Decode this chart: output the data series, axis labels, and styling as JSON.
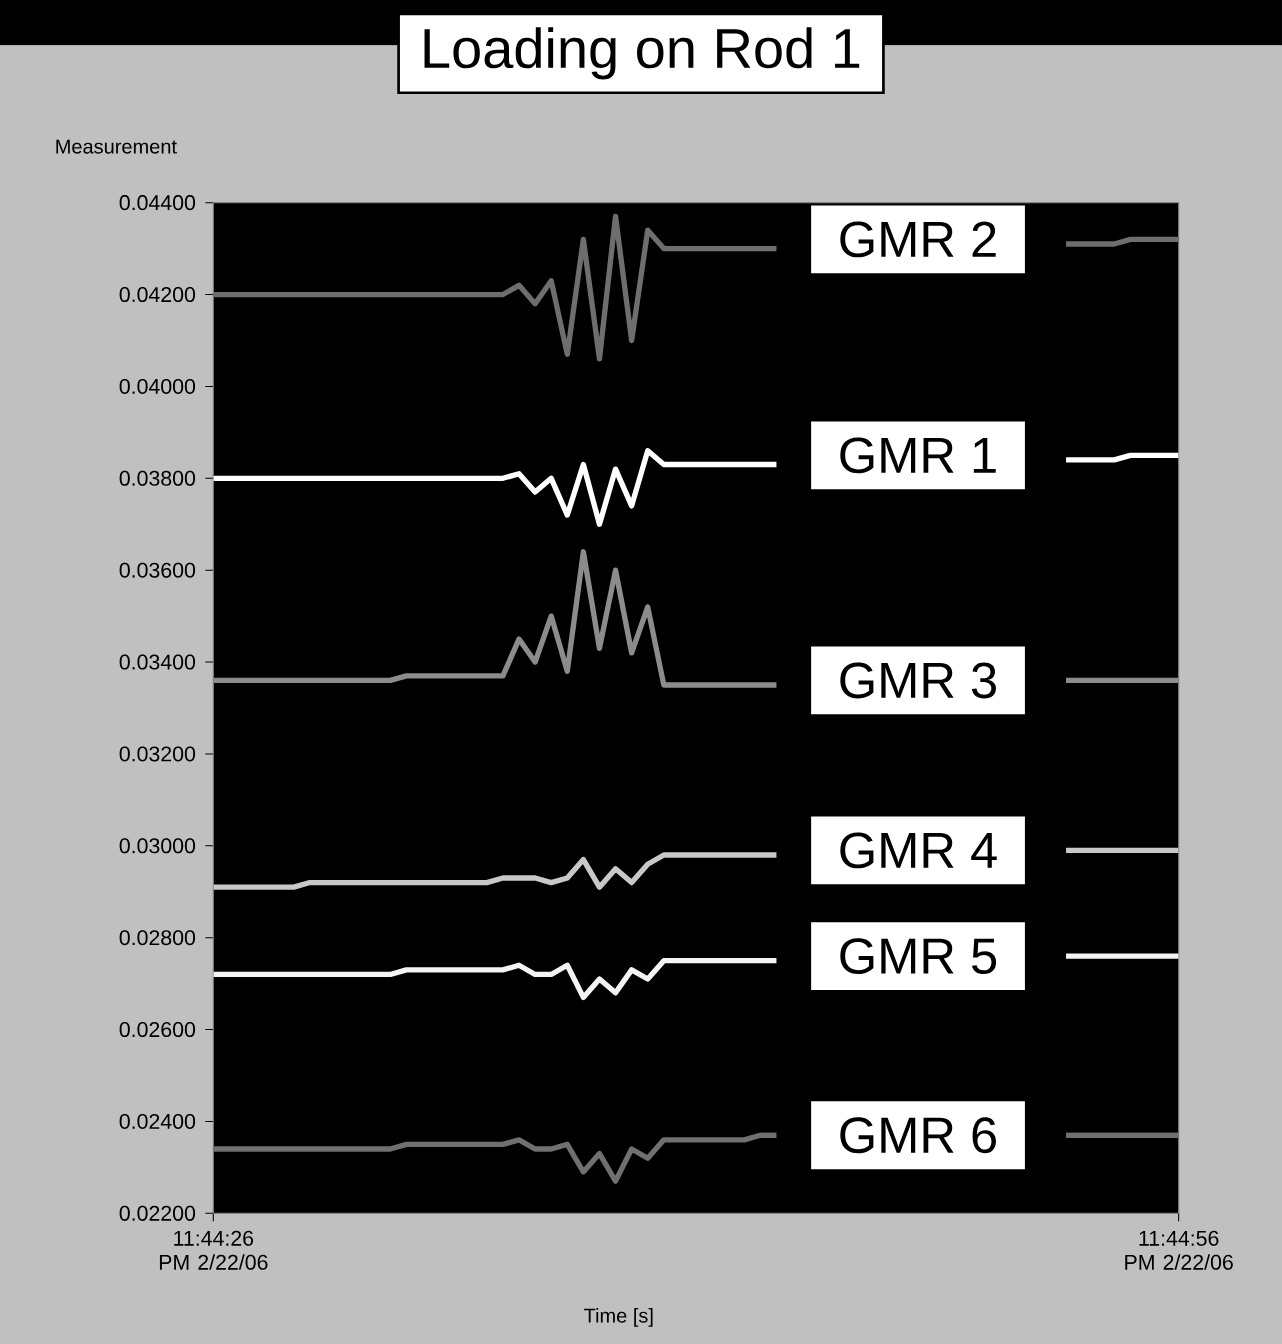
{
  "chart_data": {
    "type": "line",
    "title": "Loading on Rod 1",
    "xlabel": "Time [s]",
    "ylabel": "Measurement",
    "categories": [
      "11:44:26 PM 2/22/06",
      null,
      null,
      null,
      null,
      null,
      null,
      null,
      null,
      null,
      null,
      null,
      null,
      null,
      null,
      null,
      null,
      null,
      null,
      null,
      null,
      null,
      null,
      null,
      null,
      null,
      null,
      null,
      null,
      null,
      null,
      null,
      null,
      null,
      null,
      null,
      null,
      null,
      null,
      null,
      null,
      null,
      null,
      null,
      null,
      null,
      null,
      null,
      null,
      null,
      null,
      null,
      null,
      null,
      null,
      null,
      null,
      null,
      null,
      null,
      "11:44:56 PM 2/22/06"
    ],
    "ylim": [
      0.022,
      0.044
    ],
    "yticks": [
      {
        "value": 0.022,
        "label": "0.02200"
      },
      {
        "value": 0.024,
        "label": "0.02400"
      },
      {
        "value": 0.026,
        "label": "0.02600"
      },
      {
        "value": 0.028,
        "label": "0.02800"
      },
      {
        "value": 0.03,
        "label": "0.03000"
      },
      {
        "value": 0.032,
        "label": "0.03200"
      },
      {
        "value": 0.034,
        "label": "0.03400"
      },
      {
        "value": 0.036,
        "label": "0.03600"
      },
      {
        "value": 0.038,
        "label": "0.03800"
      },
      {
        "value": 0.04,
        "label": "0.04000"
      },
      {
        "value": 0.042,
        "label": "0.04200"
      },
      {
        "value": 0.044,
        "label": "0.04400"
      }
    ],
    "grid": false,
    "marker": "none",
    "line_style": "solid",
    "series": [
      {
        "name": "GMR 2",
        "color": "#6e6e6e",
        "values": [
          0.042,
          0.042,
          0.042,
          0.042,
          0.042,
          0.042,
          0.042,
          0.042,
          0.042,
          0.042,
          0.042,
          0.042,
          0.042,
          0.042,
          0.042,
          0.042,
          0.042,
          0.042,
          0.042,
          0.0422,
          0.0418,
          0.0423,
          0.0407,
          0.0432,
          0.0406,
          0.0437,
          0.041,
          0.0434,
          0.043,
          0.043,
          0.043,
          0.043,
          0.043,
          0.043,
          0.043,
          0.043,
          null,
          null,
          null,
          null,
          null,
          null,
          null,
          null,
          null,
          null,
          null,
          null,
          null,
          null,
          null,
          null,
          null,
          0.0431,
          0.0431,
          0.0431,
          0.0431,
          0.0432,
          0.0432,
          0.0432,
          0.0432
        ]
      },
      {
        "name": "GMR 1",
        "color": "#ffffff",
        "values": [
          0.038,
          0.038,
          0.038,
          0.038,
          0.038,
          0.038,
          0.038,
          0.038,
          0.038,
          0.038,
          0.038,
          0.038,
          0.038,
          0.038,
          0.038,
          0.038,
          0.038,
          0.038,
          0.038,
          0.0381,
          0.0377,
          0.038,
          0.0372,
          0.0383,
          0.037,
          0.0382,
          0.0374,
          0.0386,
          0.0383,
          0.0383,
          0.0383,
          0.0383,
          0.0383,
          0.0383,
          0.0383,
          0.0383,
          null,
          null,
          null,
          null,
          null,
          null,
          null,
          null,
          null,
          null,
          null,
          null,
          null,
          null,
          null,
          null,
          null,
          0.0384,
          0.0384,
          0.0384,
          0.0384,
          0.0385,
          0.0385,
          0.0385,
          0.0385
        ]
      },
      {
        "name": "GMR 3",
        "color": "#8c8c8c",
        "values": [
          0.0336,
          0.0336,
          0.0336,
          0.0336,
          0.0336,
          0.0336,
          0.0336,
          0.0336,
          0.0336,
          0.0336,
          0.0336,
          0.0336,
          0.0337,
          0.0337,
          0.0337,
          0.0337,
          0.0337,
          0.0337,
          0.0337,
          0.0345,
          0.034,
          0.035,
          0.0338,
          0.0364,
          0.0343,
          0.036,
          0.0342,
          0.0352,
          0.0335,
          0.0335,
          0.0335,
          0.0335,
          0.0335,
          0.0335,
          0.0335,
          0.0335,
          null,
          null,
          null,
          null,
          null,
          null,
          null,
          null,
          null,
          null,
          null,
          null,
          null,
          null,
          null,
          null,
          null,
          0.0336,
          0.0336,
          0.0336,
          0.0336,
          0.0336,
          0.0336,
          0.0336,
          0.0336
        ]
      },
      {
        "name": "GMR 4",
        "color": "#c8c8c8",
        "values": [
          0.0291,
          0.0291,
          0.0291,
          0.0291,
          0.0291,
          0.0291,
          0.0292,
          0.0292,
          0.0292,
          0.0292,
          0.0292,
          0.0292,
          0.0292,
          0.0292,
          0.0292,
          0.0292,
          0.0292,
          0.0292,
          0.0293,
          0.0293,
          0.0293,
          0.0292,
          0.0293,
          0.0297,
          0.0291,
          0.0295,
          0.0292,
          0.0296,
          0.0298,
          0.0298,
          0.0298,
          0.0298,
          0.0298,
          0.0298,
          0.0298,
          0.0298,
          null,
          null,
          null,
          null,
          null,
          null,
          null,
          null,
          null,
          null,
          null,
          null,
          null,
          null,
          null,
          null,
          null,
          0.0299,
          0.0299,
          0.0299,
          0.0299,
          0.0299,
          0.0299,
          0.0299,
          0.0299
        ]
      },
      {
        "name": "GMR 5",
        "color": "#f4f4f4",
        "values": [
          0.0272,
          0.0272,
          0.0272,
          0.0272,
          0.0272,
          0.0272,
          0.0272,
          0.0272,
          0.0272,
          0.0272,
          0.0272,
          0.0272,
          0.0273,
          0.0273,
          0.0273,
          0.0273,
          0.0273,
          0.0273,
          0.0273,
          0.0274,
          0.0272,
          0.0272,
          0.0274,
          0.0267,
          0.0271,
          0.0268,
          0.0273,
          0.0271,
          0.0275,
          0.0275,
          0.0275,
          0.0275,
          0.0275,
          0.0275,
          0.0275,
          0.0275,
          null,
          null,
          null,
          null,
          null,
          null,
          null,
          null,
          null,
          null,
          null,
          null,
          null,
          null,
          null,
          null,
          null,
          0.0276,
          0.0276,
          0.0276,
          0.0276,
          0.0276,
          0.0276,
          0.0276,
          0.0276
        ]
      },
      {
        "name": "GMR 6",
        "color": "#707070",
        "values": [
          0.0234,
          0.0234,
          0.0234,
          0.0234,
          0.0234,
          0.0234,
          0.0234,
          0.0234,
          0.0234,
          0.0234,
          0.0234,
          0.0234,
          0.0235,
          0.0235,
          0.0235,
          0.0235,
          0.0235,
          0.0235,
          0.0235,
          0.0236,
          0.0234,
          0.0234,
          0.0235,
          0.0229,
          0.0233,
          0.0227,
          0.0234,
          0.0232,
          0.0236,
          0.0236,
          0.0236,
          0.0236,
          0.0236,
          0.0236,
          0.0237,
          0.0237,
          null,
          null,
          null,
          null,
          null,
          null,
          null,
          null,
          null,
          null,
          null,
          null,
          null,
          null,
          null,
          null,
          null,
          0.0237,
          0.0237,
          0.0237,
          0.0237,
          0.0237,
          0.0237,
          0.0237,
          0.0237
        ]
      }
    ]
  }
}
